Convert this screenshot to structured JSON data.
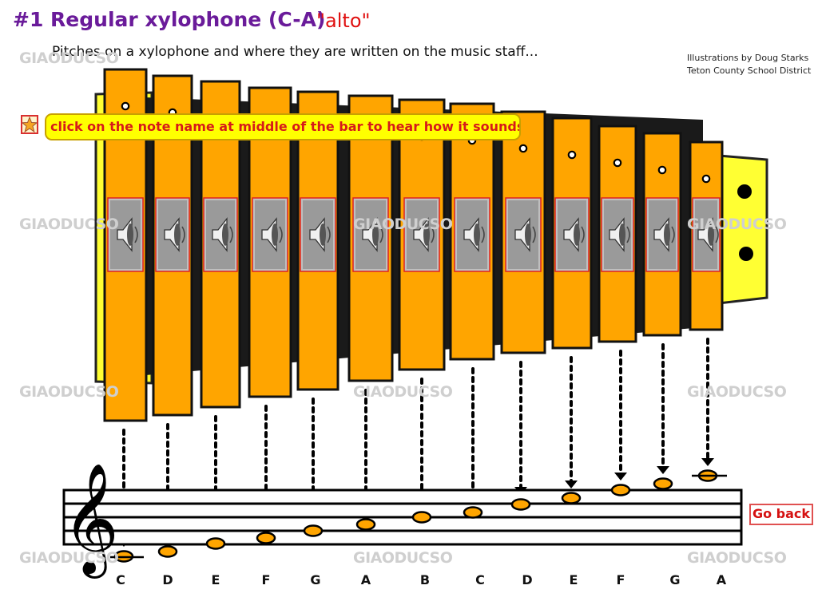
{
  "header": {
    "title": "#1 Regular xylophone (C-A)",
    "title_alto": "\"alto\"",
    "subtitle": "Pitches on a xylophone and where they are written on the music staff..."
  },
  "credits": {
    "line1": "Illustrations by Doug Starks",
    "line2": "Teton County School District"
  },
  "watermark_text": "GIAODUCSO",
  "hint": {
    "text": "click on the note name at middle of the bar to hear how it sounds."
  },
  "go_back_label": "Go back",
  "notes": [
    "C",
    "D",
    "E",
    "F",
    "G",
    "A",
    "B",
    "C",
    "D",
    "E",
    "F",
    "G",
    "A"
  ],
  "colors": {
    "bar_fill": "#ffa500",
    "frame_fill": "#ffff33",
    "speaker_frame": "#dd2222",
    "title": "#6a1b9a",
    "accent_red": "#e01010"
  },
  "icons": {
    "star": "star-icon",
    "speaker": "speaker-icon",
    "treble_clef": "treble-clef-icon"
  }
}
